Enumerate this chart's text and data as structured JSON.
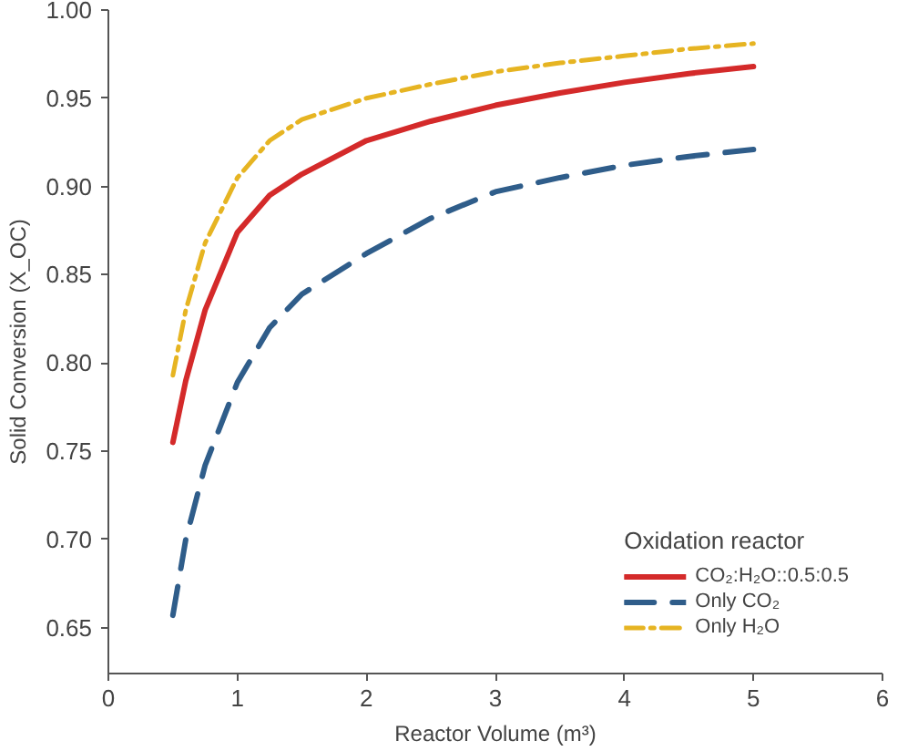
{
  "chart_data": {
    "type": "line",
    "xlabel": "Reactor Volume (m³)",
    "ylabel": "Solid Conversion (X_OC)",
    "legend_title": "Oxidation reactor",
    "xlim": [
      0,
      6
    ],
    "ylim": [
      0.624,
      1.0
    ],
    "xticks": [
      0,
      1,
      2,
      3,
      4,
      5,
      6
    ],
    "yticks": [
      {
        "value": 0.65,
        "label": "0.65"
      },
      {
        "value": 0.7,
        "label": "0.70"
      },
      {
        "value": 0.75,
        "label": "0.75"
      },
      {
        "value": 0.8,
        "label": "0.80"
      },
      {
        "value": 0.85,
        "label": "0.85"
      },
      {
        "value": 0.9,
        "label": "0.90"
      },
      {
        "value": 0.95,
        "label": "0.95"
      },
      {
        "value": 1.0,
        "label": "1.00"
      }
    ],
    "grid": false,
    "legend": "bottom right",
    "marker": "none",
    "series": [
      {
        "name": "CO₂:H₂O::0.5:0.5",
        "color": "#d42a2a",
        "line_style": "solid",
        "x": [
          0.5,
          0.6,
          0.75,
          1.0,
          1.25,
          1.5,
          2.0,
          2.5,
          3.0,
          3.5,
          4.0,
          4.5,
          5.0
        ],
        "values": [
          0.755,
          0.79,
          0.83,
          0.874,
          0.895,
          0.907,
          0.926,
          0.937,
          0.946,
          0.953,
          0.959,
          0.964,
          0.968
        ]
      },
      {
        "name": "Only CO₂",
        "color": "#2f5d8a",
        "line_style": "dashed",
        "x": [
          0.5,
          0.6,
          0.75,
          1.0,
          1.25,
          1.5,
          2.0,
          2.5,
          3.0,
          3.5,
          4.0,
          4.5,
          5.0
        ],
        "values": [
          0.657,
          0.7,
          0.742,
          0.789,
          0.82,
          0.839,
          0.862,
          0.882,
          0.897,
          0.905,
          0.912,
          0.917,
          0.921
        ]
      },
      {
        "name": "Only H₂O",
        "color": "#e6b422",
        "line_style": "dashdot",
        "x": [
          0.5,
          0.6,
          0.75,
          1.0,
          1.25,
          1.5,
          2.0,
          2.5,
          3.0,
          3.5,
          4.0,
          4.5,
          5.0
        ],
        "values": [
          0.793,
          0.83,
          0.868,
          0.905,
          0.926,
          0.938,
          0.95,
          0.958,
          0.965,
          0.97,
          0.974,
          0.978,
          0.981
        ]
      }
    ]
  }
}
